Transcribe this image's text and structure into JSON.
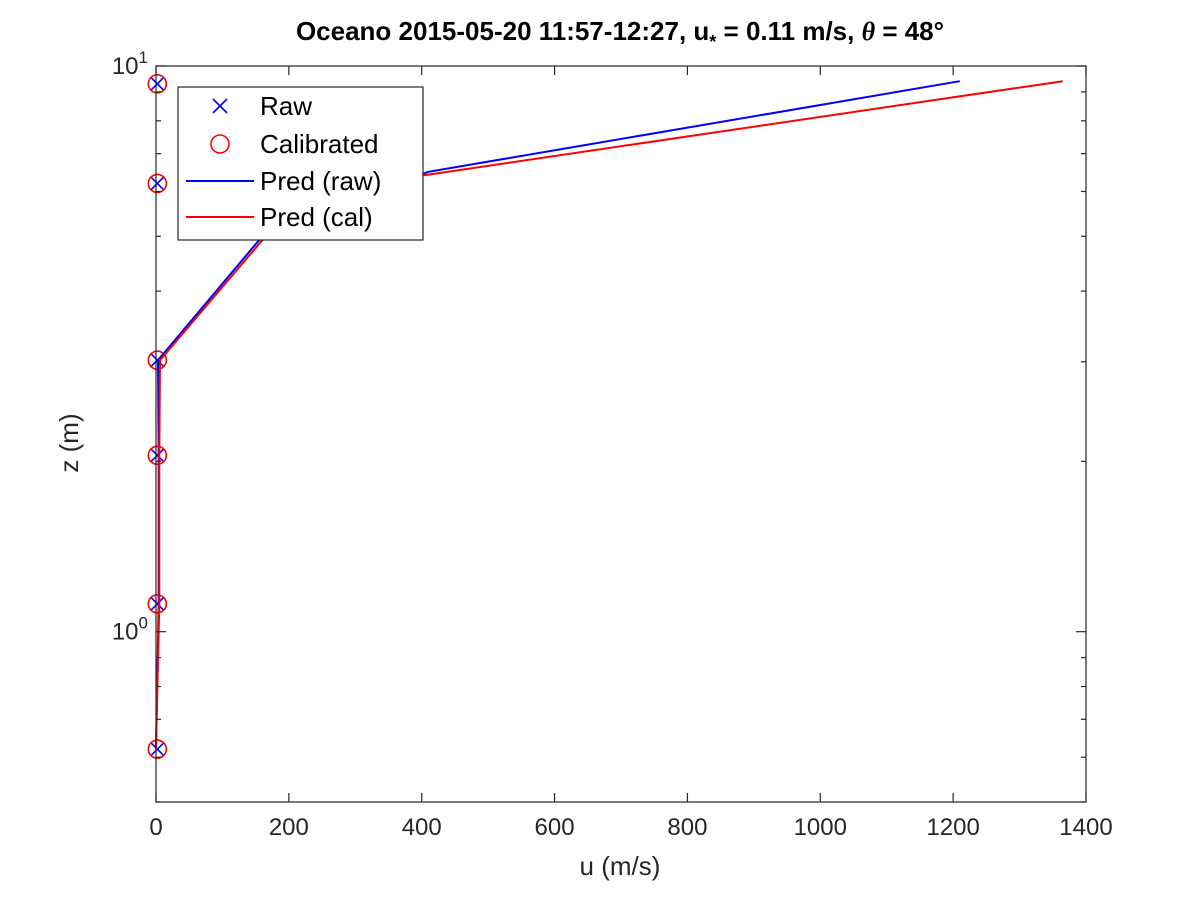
{
  "chart_data": {
    "type": "line",
    "title": "Oceano 2015-05-20 11:57-12:27, u* = 0.11 m/s, θ = 48°",
    "title_parts": {
      "main": "Oceano 2015-05-20 11:57-12:27, u",
      "subscript": "*",
      "middle": " = 0.11 m/s, ",
      "theta": "θ",
      "end": " = 48°"
    },
    "xlabel": "u (m/s)",
    "ylabel": "z (m)",
    "xlim": [
      0,
      1400
    ],
    "ylim": [
      0.5,
      10
    ],
    "yscale": "log",
    "grid": false,
    "x_ticks": [
      0,
      200,
      400,
      600,
      800,
      1000,
      1200,
      1400
    ],
    "x_tick_labels": [
      "0",
      "200",
      "400",
      "600",
      "800",
      "1000",
      "1200",
      "1400"
    ],
    "y_major_ticks": [
      {
        "value": 1,
        "base": "10",
        "exp": "0"
      },
      {
        "value": 10,
        "base": "10",
        "exp": "1"
      }
    ],
    "legend_position": "top-left",
    "series": [
      {
        "name": "Raw",
        "style": "marker-x",
        "color": "#0000ff",
        "x": [
          2,
          2,
          2,
          2,
          2,
          2
        ],
        "y": [
          0.62,
          1.12,
          2.05,
          3.02,
          6.2,
          9.3
        ]
      },
      {
        "name": "Calibrated",
        "style": "marker-circle",
        "color": "#ff0000",
        "x": [
          2,
          2,
          2,
          2,
          2,
          2
        ],
        "y": [
          0.62,
          1.12,
          2.05,
          3.02,
          6.2,
          9.3
        ]
      },
      {
        "name": "Pred (raw)",
        "style": "line",
        "color": "#0000ff",
        "x": [
          0,
          4,
          4,
          3,
          160,
          410,
          1210
        ],
        "y": [
          0.62,
          1.12,
          2.05,
          3.02,
          5.0,
          6.5,
          9.4
        ]
      },
      {
        "name": "Pred (cal)",
        "style": "line",
        "color": "#ff0000",
        "x": [
          0,
          5,
          5,
          6,
          165,
          400,
          1365
        ],
        "y": [
          0.62,
          1.12,
          2.05,
          3.02,
          5.0,
          6.4,
          9.4
        ]
      }
    ]
  }
}
